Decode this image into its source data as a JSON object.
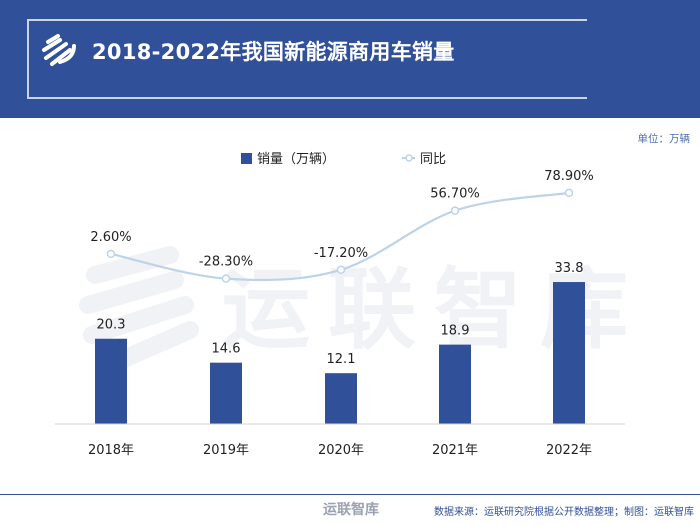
{
  "header": {
    "title": "2018-2022年我国新能源商用车销量",
    "background_color": "#30519a",
    "logo_icon": "yunlian-logo-icon"
  },
  "unit_note": "单位：万辆",
  "watermark": "运联智库",
  "footer": {
    "weibo_mark": "运联智库",
    "source": "数据来源：运联研究院根据公开数据整理；制图：运联智库"
  },
  "chart_data": {
    "type": "bar",
    "categories": [
      "2018年",
      "2019年",
      "2020年",
      "2021年",
      "2022年"
    ],
    "legend_position": "top-center",
    "grid": false,
    "series": [
      {
        "name": "销量（万辆）",
        "type": "bar",
        "color": "#30519a",
        "values": [
          20.3,
          14.6,
          12.1,
          18.9,
          33.8
        ],
        "labels": [
          "20.3",
          "14.6",
          "12.1",
          "18.9",
          "33.8"
        ]
      },
      {
        "name": "同比",
        "type": "line",
        "color": "#bcd3ea",
        "line_style": "smooth",
        "values": [
          2.6,
          -28.3,
          -17.2,
          56.7,
          78.9
        ],
        "labels": [
          "2.60%",
          "-28.30%",
          "-17.20%",
          "56.70%",
          "78.90%"
        ]
      }
    ]
  }
}
